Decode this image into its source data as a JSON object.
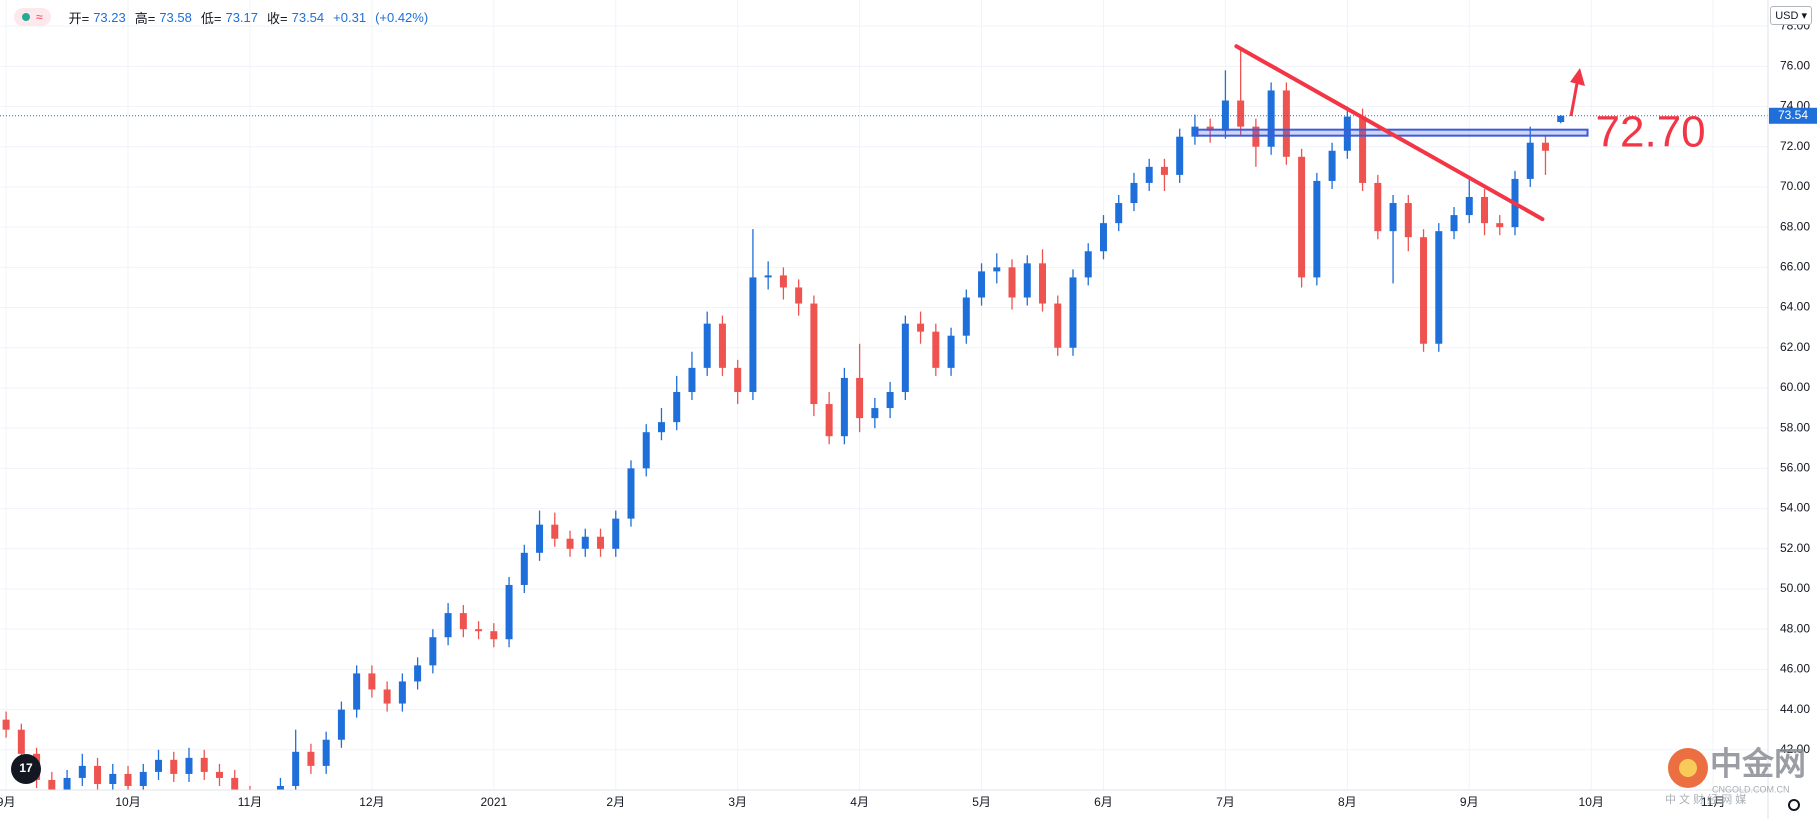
{
  "header": {
    "open_label": "开=",
    "high_label": "高=",
    "low_label": "低=",
    "close_label": "收=",
    "change": "+0.31",
    "change_pct": "(+0.42%)",
    "currency": "USD"
  },
  "watermark": {
    "brand": "中金网",
    "site": "CNGOLD.COM.CN",
    "tagline": "中 文 财 经 网 媒"
  },
  "chart_data": {
    "type": "candlestick",
    "up_color": "#1e6fd9",
    "down_color": "#ef5350",
    "grid": true,
    "x": [
      0,
      0.125,
      0.25,
      0.375,
      0.5,
      0.625,
      0.75,
      0.875,
      1,
      1.125,
      1.25,
      1.375,
      1.5,
      1.625,
      1.75,
      1.875,
      2,
      2.125,
      2.25,
      2.375,
      2.5,
      2.625,
      2.75,
      2.875,
      3,
      3.125,
      3.25,
      3.375,
      3.5,
      3.625,
      3.75,
      3.875,
      4,
      4.125,
      4.25,
      4.375,
      4.5,
      4.625,
      4.75,
      4.875,
      5,
      5.125,
      5.25,
      5.375,
      5.5,
      5.625,
      5.75,
      5.875,
      6,
      6.125,
      6.25,
      6.375,
      6.5,
      6.625,
      6.75,
      6.875,
      7,
      7.125,
      7.25,
      7.375,
      7.5,
      7.625,
      7.75,
      7.875,
      8,
      8.125,
      8.25,
      8.375,
      8.5,
      8.625,
      8.75,
      8.875,
      9,
      9.125,
      9.25,
      9.375,
      9.5,
      9.625,
      9.75,
      9.875,
      10,
      10.125,
      10.25,
      10.375,
      10.5,
      10.625,
      10.75,
      10.875,
      11,
      11.125,
      11.25,
      11.375,
      11.5,
      11.625,
      11.75,
      11.875,
      12,
      12.125,
      12.25,
      12.375,
      12.5,
      12.625,
      12.75
    ],
    "open": [
      43.5,
      43.0,
      41.8,
      40.5,
      39.5,
      40.6,
      41.2,
      40.3,
      40.8,
      40.2,
      40.9,
      41.5,
      40.8,
      41.6,
      40.9,
      40.6,
      39.8,
      39.0,
      38.6,
      40.2,
      41.9,
      41.2,
      42.5,
      44.0,
      45.8,
      45.0,
      44.3,
      45.4,
      46.2,
      47.6,
      48.8,
      48.0,
      47.9,
      47.5,
      50.2,
      51.8,
      53.2,
      52.5,
      52.0,
      52.6,
      52.0,
      53.5,
      56.0,
      57.8,
      58.3,
      59.8,
      61.0,
      63.2,
      61.0,
      59.8,
      65.5,
      65.6,
      65.0,
      64.2,
      59.2,
      57.6,
      60.5,
      58.5,
      59.0,
      59.8,
      63.2,
      62.8,
      61.0,
      62.6,
      64.5,
      65.8,
      66.0,
      64.5,
      66.2,
      64.2,
      62.0,
      65.5,
      66.8,
      68.2,
      69.2,
      70.2,
      71.0,
      70.6,
      72.5,
      73.0,
      72.8,
      74.3,
      73.0,
      72.0,
      74.8,
      71.5,
      65.5,
      70.3,
      71.8,
      73.5,
      70.2,
      67.8,
      69.2,
      67.5,
      62.2,
      67.8,
      68.6,
      69.5,
      68.2,
      68.0,
      70.4,
      72.2,
      73.23
    ],
    "high": [
      43.9,
      43.3,
      42.1,
      40.9,
      41.0,
      41.8,
      41.6,
      41.3,
      41.2,
      41.3,
      42.0,
      41.9,
      42.1,
      42.0,
      41.3,
      41.0,
      40.2,
      39.4,
      40.6,
      43.0,
      42.3,
      42.9,
      44.4,
      46.2,
      46.2,
      45.4,
      45.8,
      46.6,
      48.0,
      49.3,
      49.2,
      48.4,
      48.3,
      50.6,
      52.2,
      53.9,
      53.8,
      52.9,
      53.0,
      53.0,
      53.9,
      56.4,
      58.2,
      59.0,
      60.6,
      61.8,
      63.8,
      63.6,
      61.4,
      67.9,
      66.3,
      66.0,
      65.4,
      64.6,
      59.8,
      61.0,
      62.2,
      59.5,
      60.3,
      63.6,
      63.8,
      63.2,
      63.0,
      64.9,
      66.2,
      66.7,
      66.4,
      66.6,
      66.9,
      64.6,
      65.9,
      67.2,
      68.6,
      69.6,
      70.7,
      71.4,
      71.4,
      72.9,
      73.6,
      73.4,
      75.8,
      76.9,
      73.4,
      75.2,
      75.2,
      71.9,
      70.7,
      72.2,
      74.0,
      73.9,
      70.6,
      69.6,
      69.6,
      67.9,
      68.2,
      69.0,
      70.5,
      69.9,
      68.6,
      70.8,
      73.0,
      72.6,
      73.58
    ],
    "low": [
      42.6,
      41.4,
      40.1,
      39.1,
      39.1,
      40.2,
      39.9,
      39.9,
      39.8,
      39.8,
      40.5,
      40.4,
      40.4,
      40.5,
      40.2,
      39.4,
      38.6,
      38.2,
      38.2,
      39.8,
      40.8,
      40.8,
      42.1,
      43.6,
      44.6,
      43.9,
      43.9,
      45.0,
      45.8,
      47.2,
      47.6,
      47.5,
      47.1,
      47.1,
      49.8,
      51.4,
      52.1,
      51.6,
      51.6,
      51.6,
      51.6,
      53.1,
      55.6,
      57.4,
      57.9,
      59.4,
      60.6,
      60.6,
      59.2,
      59.4,
      64.9,
      64.4,
      63.6,
      58.6,
      57.2,
      57.2,
      57.8,
      58.0,
      58.5,
      59.4,
      62.2,
      60.6,
      60.6,
      62.2,
      64.1,
      65.2,
      63.9,
      64.1,
      63.8,
      61.6,
      61.6,
      65.1,
      66.4,
      67.8,
      68.8,
      69.8,
      69.8,
      70.2,
      72.1,
      72.2,
      72.4,
      72.6,
      71.0,
      71.6,
      71.1,
      65.0,
      65.1,
      69.9,
      71.4,
      69.8,
      67.4,
      65.2,
      66.8,
      61.8,
      61.8,
      67.4,
      68.2,
      67.6,
      67.6,
      67.6,
      70.0,
      70.6,
      73.17
    ],
    "close": [
      43.0,
      41.8,
      40.5,
      39.5,
      40.6,
      41.2,
      40.3,
      40.8,
      40.2,
      40.9,
      41.5,
      40.8,
      41.6,
      40.9,
      40.6,
      39.8,
      39.0,
      38.6,
      40.2,
      41.9,
      41.2,
      42.5,
      44.0,
      45.8,
      45.0,
      44.3,
      45.4,
      46.2,
      47.6,
      48.8,
      48.0,
      47.9,
      47.5,
      50.2,
      51.8,
      53.2,
      52.5,
      52.0,
      52.6,
      52.0,
      53.5,
      56.0,
      57.8,
      58.3,
      59.8,
      61.0,
      63.2,
      61.0,
      59.8,
      65.5,
      65.6,
      65.0,
      64.2,
      59.2,
      57.6,
      60.5,
      58.5,
      59.0,
      59.8,
      63.2,
      62.8,
      61.0,
      62.6,
      64.5,
      65.8,
      66.0,
      64.5,
      66.2,
      64.2,
      62.0,
      65.5,
      66.8,
      68.2,
      69.2,
      70.2,
      71.0,
      70.6,
      72.5,
      73.0,
      72.8,
      74.3,
      73.0,
      72.0,
      74.8,
      71.5,
      65.5,
      70.3,
      71.8,
      73.5,
      70.2,
      67.8,
      69.2,
      67.5,
      62.2,
      67.8,
      68.6,
      69.5,
      68.2,
      68.0,
      70.4,
      72.2,
      71.8,
      73.54
    ],
    "xlim": [
      -0.05,
      14.45
    ],
    "xticks": [
      {
        "value": 0,
        "label": "9月"
      },
      {
        "value": 1,
        "label": "10月"
      },
      {
        "value": 2,
        "label": "11月"
      },
      {
        "value": 3,
        "label": "12月"
      },
      {
        "value": 4,
        "label": "2021"
      },
      {
        "value": 5,
        "label": "2月"
      },
      {
        "value": 6,
        "label": "3月"
      },
      {
        "value": 7,
        "label": "4月"
      },
      {
        "value": 8,
        "label": "5月"
      },
      {
        "value": 9,
        "label": "6月"
      },
      {
        "value": 10,
        "label": "7月"
      },
      {
        "value": 11,
        "label": "8月"
      },
      {
        "value": 12,
        "label": "9月"
      },
      {
        "value": 13,
        "label": "10月"
      },
      {
        "value": 14,
        "label": "11月"
      }
    ],
    "ylim": [
      40,
      79.3
    ],
    "yticks": [
      {
        "value": 42,
        "label": "42.00"
      },
      {
        "value": 44,
        "label": "44.00"
      },
      {
        "value": 46,
        "label": "46.00"
      },
      {
        "value": 48,
        "label": "48.00"
      },
      {
        "value": 50,
        "label": "50.00"
      },
      {
        "value": 52,
        "label": "52.00"
      },
      {
        "value": 54,
        "label": "54.00"
      },
      {
        "value": 56,
        "label": "56.00"
      },
      {
        "value": 58,
        "label": "58.00"
      },
      {
        "value": 60,
        "label": "60.00"
      },
      {
        "value": 62,
        "label": "62.00"
      },
      {
        "value": 64,
        "label": "64.00"
      },
      {
        "value": 66,
        "label": "66.00"
      },
      {
        "value": 68,
        "label": "68.00"
      },
      {
        "value": 70,
        "label": "70.00"
      },
      {
        "value": 72,
        "label": "72.00"
      },
      {
        "value": 74,
        "label": "74.00"
      },
      {
        "value": 76,
        "label": "76.00"
      },
      {
        "value": 78,
        "label": "78.00"
      }
    ],
    "level_line": {
      "value": 72.7,
      "label": "72.70",
      "x": [
        9.77,
        12.97
      ],
      "color": "#3d5bd9",
      "label_color": "#f23645"
    },
    "trendline": {
      "x": [
        10.09,
        12.6
      ],
      "y": [
        77.0,
        68.4
      ],
      "color": "#f23645"
    },
    "last_price_color": "#1e6fd9"
  }
}
